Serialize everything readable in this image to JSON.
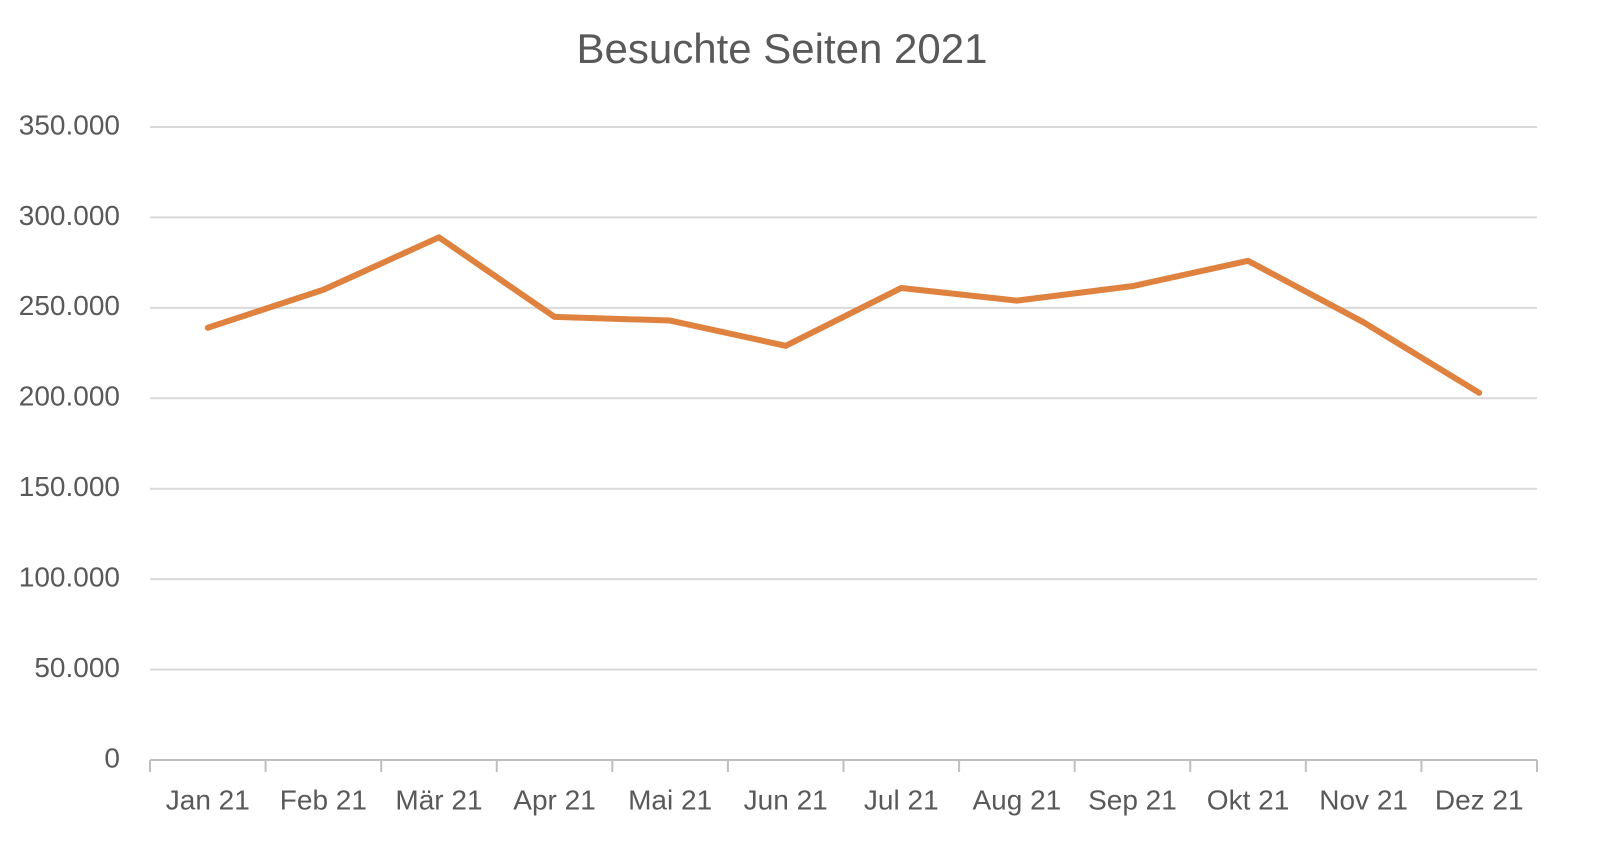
{
  "chart_data": {
    "type": "line",
    "title": "Besuchte Seiten 2021",
    "categories": [
      "Jan 21",
      "Feb 21",
      "Mär 21",
      "Apr 21",
      "Mai 21",
      "Jun 21",
      "Jul 21",
      "Aug 21",
      "Sep 21",
      "Okt 21",
      "Nov 21",
      "Dez 21"
    ],
    "values": [
      239000,
      260000,
      289000,
      245000,
      243000,
      229000,
      261000,
      254000,
      262000,
      276000,
      242000,
      203000
    ],
    "color": "#e0823f",
    "ylim": [
      0,
      350000
    ],
    "yticks": [
      0,
      {
        "value": 50000,
        "label": "50.000"
      },
      {
        "value": 100000,
        "label": "100.000"
      },
      {
        "value": 150000,
        "label": "150.000"
      },
      {
        "value": 200000,
        "label": "200.000"
      },
      {
        "value": 250000,
        "label": "250.000"
      },
      {
        "value": 300000,
        "label": "300.000"
      },
      {
        "value": 350000,
        "label": "350.000"
      }
    ],
    "grid": true
  }
}
